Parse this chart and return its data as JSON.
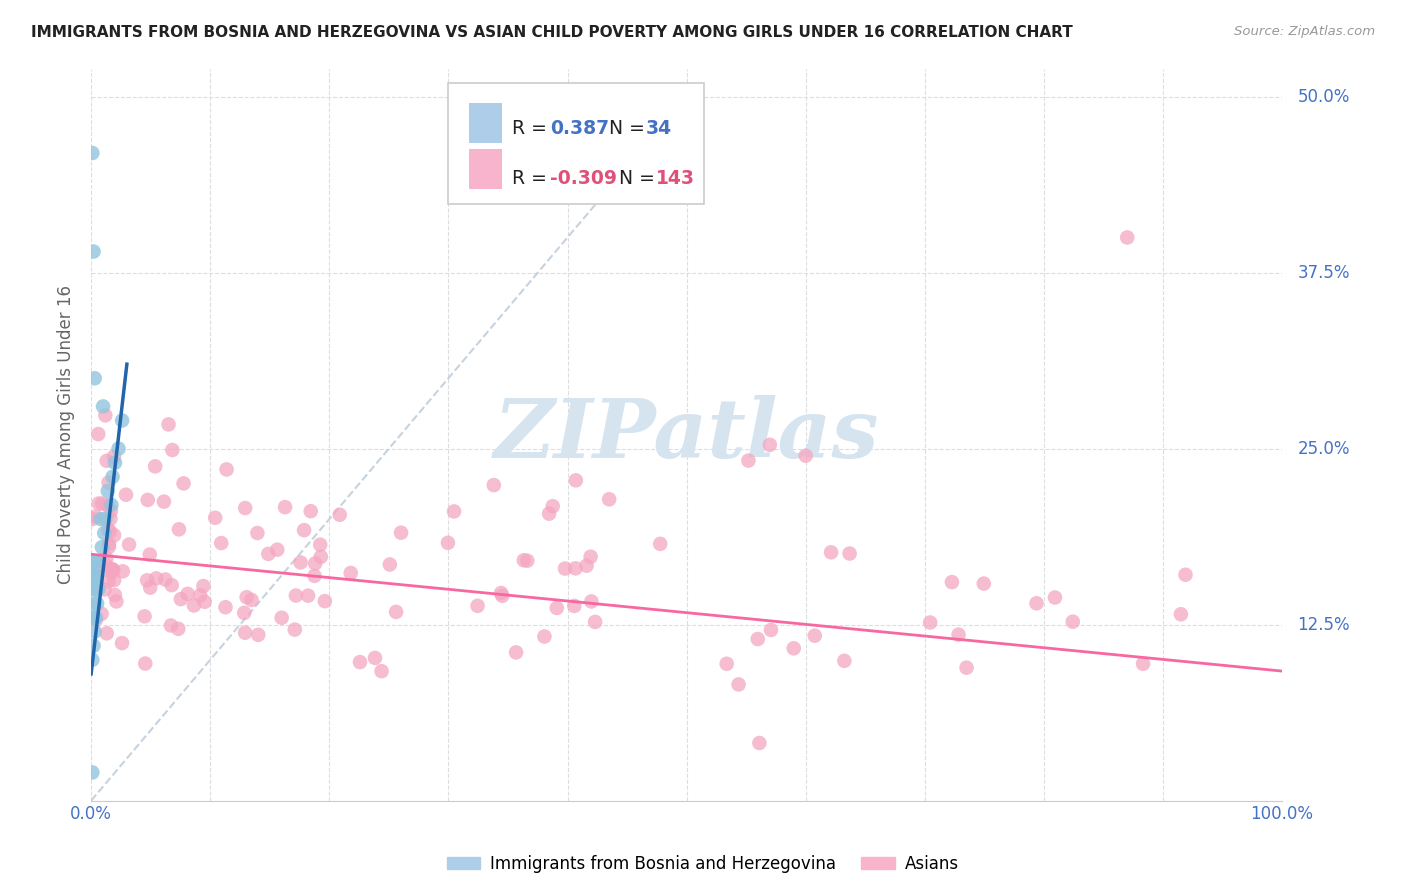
{
  "title": "IMMIGRANTS FROM BOSNIA AND HERZEGOVINA VS ASIAN CHILD POVERTY AMONG GIRLS UNDER 16 CORRELATION CHART",
  "source": "Source: ZipAtlas.com",
  "ylabel": "Child Poverty Among Girls Under 16",
  "xlim": [
    0.0,
    1.0
  ],
  "ylim": [
    0.0,
    0.52
  ],
  "yticks": [
    0.0,
    0.125,
    0.25,
    0.375,
    0.5
  ],
  "ytick_labels_right": [
    "",
    "12.5%",
    "25.0%",
    "37.5%",
    "50.0%"
  ],
  "xtick_vals": [
    0.0,
    0.1,
    0.2,
    0.3,
    0.4,
    0.5,
    0.6,
    0.7,
    0.8,
    0.9,
    1.0
  ],
  "xtick_labels": [
    "0.0%",
    "",
    "",
    "",
    "",
    "",
    "",
    "",
    "",
    "",
    "100.0%"
  ],
  "R_blue": 0.387,
  "N_blue": 34,
  "R_pink": -0.309,
  "N_pink": 143,
  "blue_scatter_color": "#92c5de",
  "pink_scatter_color": "#f4a6c0",
  "blue_line_color": "#2166ac",
  "pink_line_color": "#f768a1",
  "diagonal_color": "#b8c8d8",
  "legend_label_blue": "Immigrants from Bosnia and Herzegovina",
  "legend_label_pink": "Asians",
  "watermark_text": "ZIPatlas",
  "watermark_color": "#d6e4f0",
  "title_color": "#222222",
  "source_color": "#999999",
  "axis_label_color": "#666666",
  "tick_color": "#4472c4",
  "grid_color": "#dddddd",
  "legend_box_color": "#aecde8",
  "legend_box_pink": "#f8b4cc"
}
